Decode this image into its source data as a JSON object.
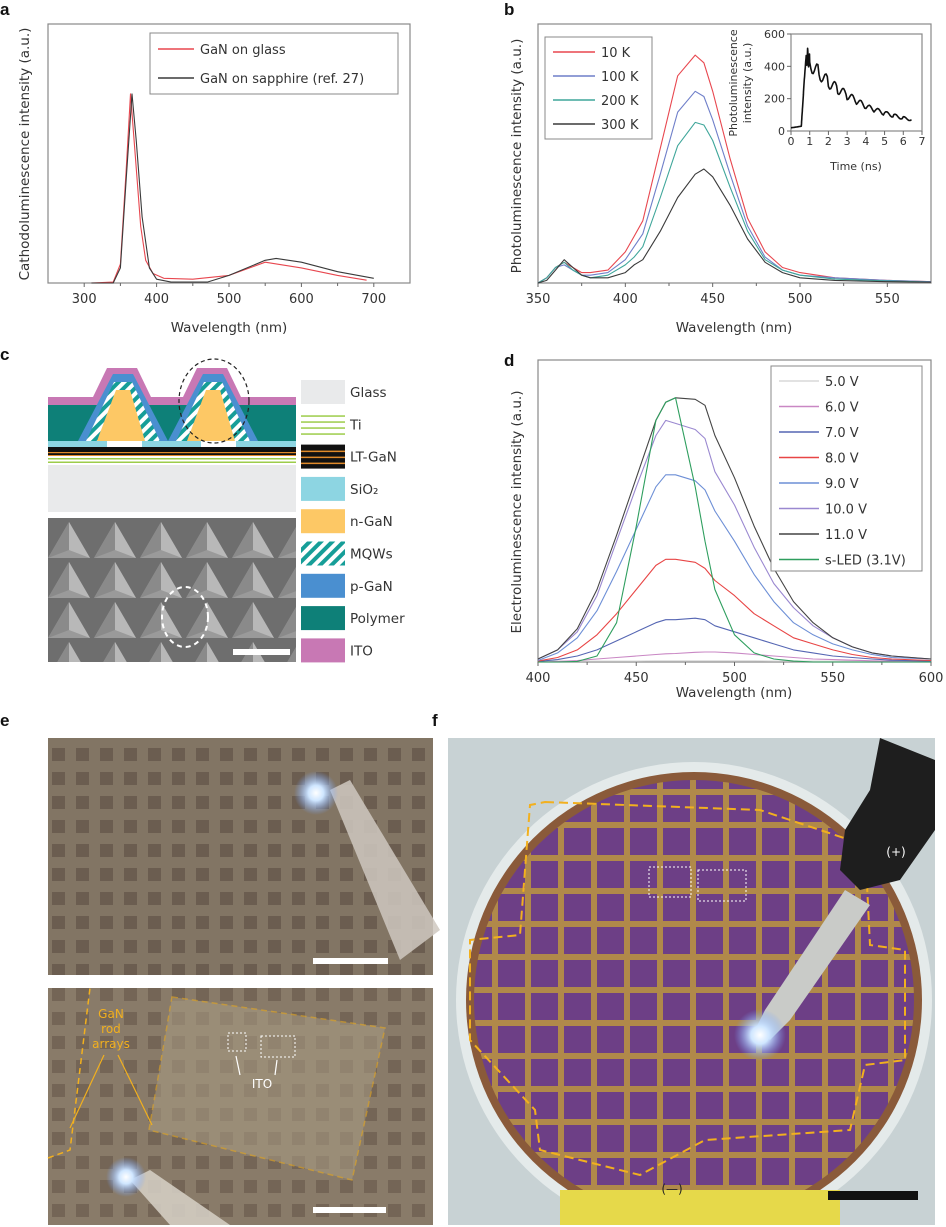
{
  "panels": {
    "a": "a",
    "b": "b",
    "c": "c",
    "d": "d",
    "e": "e",
    "f": "f"
  },
  "chart_data": [
    {
      "type": "line",
      "panel": "a",
      "xlabel": "Wavelength (nm)",
      "ylabel": "Cathodoluminescence intensity (a.u.)",
      "xlim": [
        250,
        750
      ],
      "ylim": [
        0,
        1.37
      ],
      "xticks": [
        300,
        400,
        500,
        600,
        700
      ],
      "legend_position": "top-right",
      "series": [
        {
          "name": "GaN on glass",
          "color": "#e8474f",
          "x": [
            310,
            340,
            350,
            358,
            364,
            370,
            378,
            385,
            395,
            410,
            450,
            500,
            550,
            600,
            650,
            690
          ],
          "y": [
            0,
            0.005,
            0.1,
            0.6,
            1.0,
            0.7,
            0.3,
            0.12,
            0.05,
            0.025,
            0.02,
            0.04,
            0.11,
            0.08,
            0.04,
            0.015
          ]
        },
        {
          "name": "GaN on sapphire (ref. 27)",
          "color": "#3a3a3a",
          "x": [
            310,
            340,
            350,
            358,
            366,
            372,
            380,
            390,
            400,
            420,
            470,
            500,
            550,
            565,
            600,
            650,
            700
          ],
          "y": [
            0,
            0,
            0.08,
            0.55,
            1.0,
            0.75,
            0.35,
            0.08,
            0.02,
            0.005,
            0.005,
            0.04,
            0.12,
            0.13,
            0.11,
            0.06,
            0.025
          ]
        }
      ]
    },
    {
      "type": "line",
      "panel": "b",
      "xlabel": "Wavelength (nm)",
      "ylabel": "Photoluminescence intensity (a.u.)",
      "xlim": [
        350,
        575
      ],
      "ylim": [
        0,
        1
      ],
      "xticks": [
        350,
        400,
        450,
        500,
        550
      ],
      "legend_position": "top-left",
      "x": [
        350,
        355,
        360,
        365,
        370,
        375,
        380,
        390,
        400,
        405,
        410,
        420,
        430,
        440,
        445,
        450,
        460,
        470,
        480,
        490,
        500,
        520,
        550,
        575
      ],
      "series": [
        {
          "name": "10 K",
          "color": "#e8474f",
          "y": [
            0,
            0.02,
            0.06,
            0.08,
            0.06,
            0.04,
            0.04,
            0.05,
            0.12,
            0.18,
            0.24,
            0.52,
            0.8,
            0.88,
            0.85,
            0.74,
            0.48,
            0.25,
            0.12,
            0.06,
            0.04,
            0.02,
            0.01,
            0.005
          ]
        },
        {
          "name": "100 K",
          "color": "#6f7fc9",
          "y": [
            0,
            0.02,
            0.06,
            0.07,
            0.05,
            0.03,
            0.03,
            0.04,
            0.09,
            0.14,
            0.19,
            0.42,
            0.66,
            0.74,
            0.72,
            0.63,
            0.42,
            0.22,
            0.1,
            0.05,
            0.03,
            0.02,
            0.01,
            0.005
          ]
        },
        {
          "name": "200 K",
          "color": "#3fa69a",
          "y": [
            0,
            0.02,
            0.06,
            0.08,
            0.05,
            0.03,
            0.02,
            0.03,
            0.07,
            0.1,
            0.14,
            0.33,
            0.53,
            0.62,
            0.61,
            0.55,
            0.37,
            0.2,
            0.09,
            0.05,
            0.03,
            0.015,
            0.008,
            0.004
          ]
        },
        {
          "name": "300 K",
          "color": "#3a3a3a",
          "y": [
            0,
            0.01,
            0.05,
            0.09,
            0.06,
            0.03,
            0.02,
            0.02,
            0.04,
            0.07,
            0.09,
            0.2,
            0.33,
            0.42,
            0.44,
            0.41,
            0.3,
            0.17,
            0.08,
            0.04,
            0.02,
            0.01,
            0.005,
            0.003
          ]
        }
      ],
      "inset": {
        "type": "line",
        "xlabel": "Time (ns)",
        "ylabel": "Photoluminescence intensity (a.u.)",
        "xlim": [
          0,
          7
        ],
        "ylim": [
          0,
          600
        ],
        "xticks": [
          0,
          1,
          2,
          3,
          4,
          5,
          6,
          7
        ],
        "yticks": [
          0,
          200,
          400,
          600
        ],
        "series": [
          {
            "name": "decay",
            "color": "#111",
            "x": [
              0,
              0.3,
              0.55,
              0.62,
              0.7,
              0.8,
              0.9,
              1.0,
              1.5,
              2.0,
              2.5,
              3.0,
              3.5,
              4.0,
              4.5,
              5.0,
              5.5,
              6.0,
              6.5
            ],
            "y": [
              20,
              25,
              30,
              150,
              300,
              450,
              470,
              420,
              360,
              300,
              260,
              220,
              185,
              150,
              130,
              110,
              95,
              80,
              70
            ]
          }
        ]
      }
    },
    {
      "type": "line",
      "panel": "d",
      "xlabel": "Wavelength (nm)",
      "ylabel": "Electroluminescence intensity (a.u.)",
      "xlim": [
        400,
        600
      ],
      "ylim": [
        0,
        1
      ],
      "xticks": [
        400,
        450,
        500,
        550,
        600
      ],
      "legend_position": "top-right",
      "x": [
        400,
        410,
        420,
        430,
        440,
        450,
        460,
        465,
        470,
        480,
        485,
        490,
        500,
        510,
        520,
        530,
        540,
        550,
        560,
        570,
        580,
        600
      ],
      "series": [
        {
          "name": "5.0 V",
          "color": "#d8d8d8",
          "y": [
            0.003,
            0.003,
            0.003,
            0.003,
            0.003,
            0.003,
            0.004,
            0.004,
            0.004,
            0.004,
            0.004,
            0.004,
            0.004,
            0.004,
            0.003,
            0.003,
            0.003,
            0.003,
            0.003,
            0.003,
            0.003,
            0.003
          ]
        },
        {
          "name": "6.0 V",
          "color": "#c987c4",
          "y": [
            0,
            0.002,
            0.005,
            0.01,
            0.015,
            0.02,
            0.025,
            0.027,
            0.028,
            0.032,
            0.033,
            0.033,
            0.03,
            0.025,
            0.02,
            0.015,
            0.01,
            0.008,
            0.006,
            0.004,
            0.003,
            0.001
          ]
        },
        {
          "name": "7.0 V",
          "color": "#5566b3",
          "y": [
            0.002,
            0.008,
            0.02,
            0.04,
            0.07,
            0.1,
            0.13,
            0.14,
            0.14,
            0.145,
            0.14,
            0.12,
            0.1,
            0.08,
            0.06,
            0.04,
            0.03,
            0.02,
            0.015,
            0.01,
            0.006,
            0.003
          ]
        },
        {
          "name": "8.0 V",
          "color": "#e84545",
          "y": [
            0.003,
            0.015,
            0.04,
            0.09,
            0.16,
            0.24,
            0.32,
            0.34,
            0.34,
            0.33,
            0.31,
            0.27,
            0.22,
            0.16,
            0.12,
            0.08,
            0.06,
            0.04,
            0.025,
            0.015,
            0.01,
            0.005
          ]
        },
        {
          "name": "9.0 V",
          "color": "#6d8fd6",
          "y": [
            0.005,
            0.03,
            0.08,
            0.17,
            0.3,
            0.44,
            0.58,
            0.62,
            0.62,
            0.6,
            0.57,
            0.5,
            0.4,
            0.29,
            0.2,
            0.13,
            0.09,
            0.06,
            0.04,
            0.025,
            0.015,
            0.01
          ]
        },
        {
          "name": "10.0 V",
          "color": "#9a88d0",
          "y": [
            0.01,
            0.04,
            0.1,
            0.22,
            0.4,
            0.58,
            0.75,
            0.8,
            0.79,
            0.77,
            0.74,
            0.63,
            0.52,
            0.38,
            0.26,
            0.18,
            0.12,
            0.08,
            0.05,
            0.03,
            0.02,
            0.01
          ]
        },
        {
          "name": "11.0 V",
          "color": "#444444",
          "y": [
            0.01,
            0.04,
            0.11,
            0.24,
            0.42,
            0.61,
            0.8,
            0.86,
            0.875,
            0.87,
            0.85,
            0.75,
            0.61,
            0.45,
            0.31,
            0.2,
            0.13,
            0.08,
            0.05,
            0.03,
            0.02,
            0.01
          ]
        },
        {
          "name": "s-LED (3.1V)",
          "color": "#2e9e5e",
          "y": [
            0,
            0,
            0.002,
            0.02,
            0.13,
            0.45,
            0.8,
            0.86,
            0.875,
            0.58,
            0.4,
            0.24,
            0.09,
            0.03,
            0.01,
            0.003,
            0,
            0,
            0,
            0,
            0,
            0
          ]
        }
      ]
    }
  ],
  "schematic_legend": [
    {
      "label": "Glass",
      "color": "#e9eaeb"
    },
    {
      "label": "Ti",
      "color": "#9ccc4a"
    },
    {
      "label": "LT-GaN",
      "color": "#111111"
    },
    {
      "label": "SiO₂",
      "color": "#8dd5e2"
    },
    {
      "label": "n-GaN",
      "color": "#fdc865"
    },
    {
      "label": "MQWs",
      "color": "#169e98"
    },
    {
      "label": "p-GaN",
      "color": "#4a8fd0"
    },
    {
      "label": "Polymer",
      "color": "#0e8078"
    },
    {
      "label": "ITO",
      "color": "#c878b4"
    }
  ],
  "photo_e": {
    "annotation_rods": [
      "GaN",
      "rod",
      "arrays"
    ],
    "annotation_ito": "ITO"
  },
  "photo_f": {
    "plus_label": "(+)",
    "minus_label": "(—)"
  }
}
